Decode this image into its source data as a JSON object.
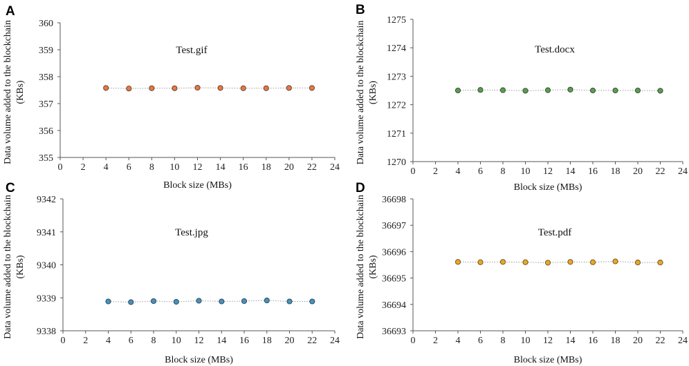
{
  "chart_data": [
    {
      "type": "scatter",
      "panel": "A",
      "title": "Test.gif",
      "xlabel": "Block size (MBs)",
      "ylabel_line1": "Data volume added to the blockchain",
      "ylabel_line2": "(KBs)",
      "xlim": [
        0,
        24
      ],
      "xticks": [
        "0",
        "2",
        "4",
        "6",
        "8",
        "10",
        "12",
        "14",
        "16",
        "18",
        "20",
        "22",
        "24"
      ],
      "ylim": [
        355,
        360
      ],
      "yticks": [
        "355",
        "356",
        "357",
        "358",
        "359",
        "360"
      ],
      "x": [
        4,
        6,
        8,
        10,
        12,
        14,
        16,
        18,
        20,
        22
      ],
      "y": [
        357.58,
        357.56,
        357.57,
        357.57,
        357.59,
        357.58,
        357.57,
        357.57,
        357.58,
        357.58
      ],
      "color": "#e07b4a"
    },
    {
      "type": "scatter",
      "panel": "B",
      "title": "Test.docx",
      "xlabel": "Block size (MBs)",
      "ylabel_line1": "Data volume added to the blockchain",
      "ylabel_line2": "(KBs)",
      "xlim": [
        0,
        24
      ],
      "xticks": [
        "0",
        "2",
        "4",
        "6",
        "8",
        "10",
        "12",
        "14",
        "16",
        "18",
        "20",
        "22",
        "24"
      ],
      "ylim": [
        1270,
        1275
      ],
      "yticks": [
        "1270",
        "1271",
        "1272",
        "1273",
        "1274",
        "1275"
      ],
      "x": [
        4,
        6,
        8,
        10,
        12,
        14,
        16,
        18,
        20,
        22
      ],
      "y": [
        1272.5,
        1272.52,
        1272.51,
        1272.49,
        1272.51,
        1272.53,
        1272.5,
        1272.5,
        1272.5,
        1272.49
      ],
      "color": "#5c9b53"
    },
    {
      "type": "scatter",
      "panel": "C",
      "title": "Test.jpg",
      "xlabel": "Block size (MBs)",
      "ylabel_line1": "Data volume added to the blockchain",
      "ylabel_line2": "(KBs)",
      "xlim": [
        0,
        24
      ],
      "xticks": [
        "0",
        "2",
        "4",
        "6",
        "8",
        "10",
        "12",
        "14",
        "16",
        "18",
        "20",
        "22",
        "24"
      ],
      "ylim": [
        9338,
        9342
      ],
      "yticks": [
        "9338",
        "9339",
        "9340",
        "9341",
        "9342"
      ],
      "x": [
        4,
        6,
        8,
        10,
        12,
        14,
        16,
        18,
        20,
        22
      ],
      "y": [
        9338.89,
        9338.87,
        9338.9,
        9338.88,
        9338.91,
        9338.89,
        9338.9,
        9338.92,
        9338.89,
        9338.89
      ],
      "color": "#4a90b8"
    },
    {
      "type": "scatter",
      "panel": "D",
      "title": "Test.pdf",
      "xlabel": "Block size (MBs)",
      "ylabel_line1": "Data volume added to the blockchain",
      "ylabel_line2": "(KBs)",
      "xlim": [
        0,
        24
      ],
      "xticks": [
        "0",
        "2",
        "4",
        "6",
        "8",
        "10",
        "12",
        "14",
        "16",
        "18",
        "20",
        "22",
        "24"
      ],
      "ylim": [
        36693,
        36698
      ],
      "yticks": [
        "36693",
        "36694",
        "36695",
        "36696",
        "36697",
        "36698"
      ],
      "x": [
        4,
        6,
        8,
        10,
        12,
        14,
        16,
        18,
        20,
        22
      ],
      "y": [
        36695.61,
        36695.6,
        36695.61,
        36695.6,
        36695.58,
        36695.61,
        36695.6,
        36695.63,
        36695.59,
        36695.59
      ],
      "color": "#e8a82a"
    }
  ]
}
